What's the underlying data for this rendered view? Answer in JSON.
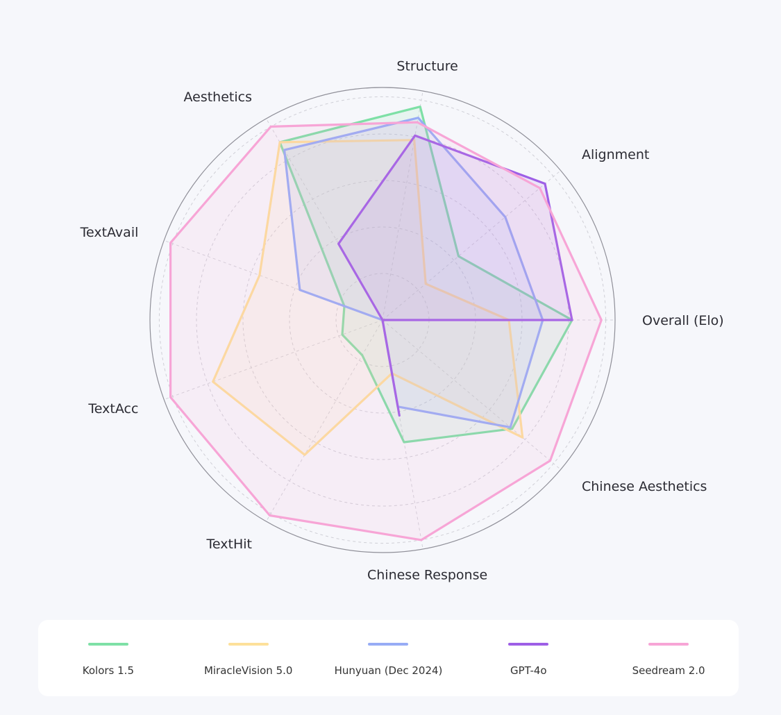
{
  "chart_data": {
    "type": "radar",
    "axes": [
      "Overall (Elo)",
      "Alignment",
      "Structure",
      "Aesthetics",
      "TextAvail",
      "TextAcc",
      "TextHit",
      "Chinese Response",
      "Chinese Aesthetics"
    ],
    "rmax": 1.0,
    "grid": true,
    "legend_position": "bottom",
    "series": [
      {
        "name": "Kolors 1.5",
        "color": "#7ee0a6",
        "values": [
          0.84,
          0.44,
          0.96,
          0.91,
          0.18,
          0.19,
          0.18,
          0.55,
          0.75
        ]
      },
      {
        "name": "MiracleVision 5.0",
        "color": "#fde09a",
        "values": [
          0.56,
          0.25,
          0.81,
          0.91,
          0.58,
          0.8,
          0.69,
          0.24,
          0.81
        ]
      },
      {
        "name": "Hunyuan (Dec 2024)",
        "color": "#97acf5",
        "values": [
          0.71,
          0.71,
          0.91,
          0.87,
          0.39,
          0.0,
          0.0,
          0.39,
          0.74
        ]
      },
      {
        "name": "GPT-4o",
        "color": "#9e5fe6",
        "values": [
          0.84,
          0.94,
          0.83,
          0.39,
          0.0,
          0.0,
          0.0,
          0.43,
          0.0
        ]
      },
      {
        "name": "Seedream 2.0",
        "color": "#f7a5d6",
        "values": [
          0.97,
          0.91,
          0.89,
          0.99,
          1.0,
          1.0,
          1.0,
          0.99,
          0.97
        ]
      }
    ]
  }
}
